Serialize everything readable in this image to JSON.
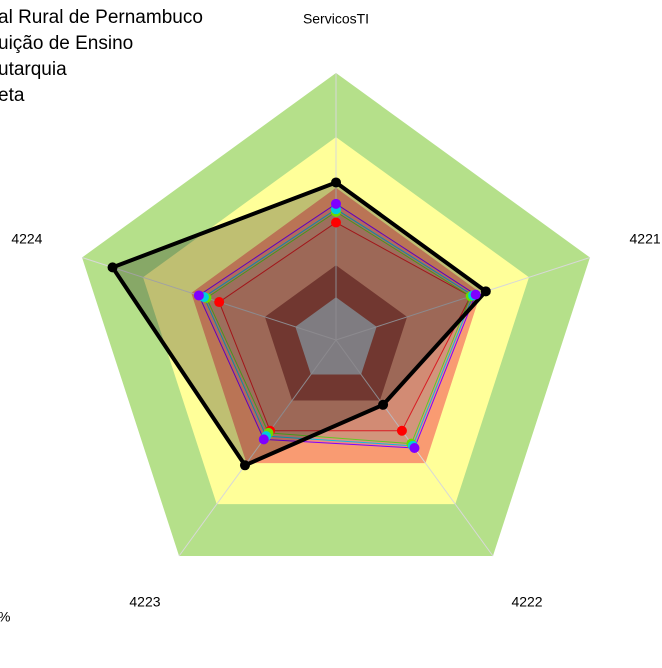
{
  "chart_data": {
    "type": "radar",
    "categories": [
      "ServicosTI",
      "4221",
      "4222",
      "4223",
      "4224"
    ],
    "rlim": [
      0,
      100
    ],
    "bands": [
      {
        "value": 100,
        "color": "#b5e08a"
      },
      {
        "value": 76,
        "color": "#ffff99"
      },
      {
        "value": 57,
        "color": "#f99b72"
      },
      {
        "value": 28,
        "color": "#a8402a"
      },
      {
        "value": 16,
        "color": "#c0c0c0"
      }
    ],
    "series": [
      {
        "name": null,
        "color": "#ff0000",
        "values": [
          44,
          53,
          42,
          42,
          46
        ]
      },
      {
        "name": "al Rural de Pernambuco",
        "color": "#66dd00",
        "values": [
          48,
          53,
          48,
          43,
          51
        ]
      },
      {
        "name": "uição de Ensino",
        "color": "#00ccdd",
        "values": [
          49,
          54,
          49,
          44.5,
          52
        ]
      },
      {
        "name": "utarquia",
        "color": "#7f00ff",
        "values": [
          51,
          55,
          50,
          46,
          54
        ]
      },
      {
        "name": "eta",
        "color": "#000000",
        "values": [
          59,
          59,
          30,
          58,
          88
        ]
      }
    ],
    "footnote": "%"
  }
}
